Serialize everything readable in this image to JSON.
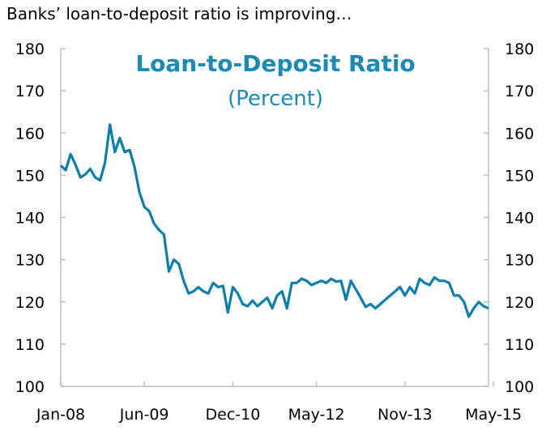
{
  "header": {
    "text": "Banks’ loan-to-deposit ratio is improving…"
  },
  "colors": {
    "line": "#0a7fb0",
    "title": "#1a8ab7",
    "axis": "#bfbfbf"
  },
  "chart_data": {
    "type": "line",
    "title": "Loan-to-Deposit Ratio",
    "subtitle": "(Percent)",
    "xlabel": "",
    "ylabel": "",
    "ylim": [
      100,
      180
    ],
    "y_ticks": [
      100,
      110,
      120,
      130,
      140,
      150,
      160,
      170,
      180
    ],
    "y_tick_labels": [
      "100",
      "110",
      "120",
      "130",
      "140",
      "150",
      "160",
      "170",
      "180"
    ],
    "x_tick_labels": [
      "Jan-08",
      "Jun-09",
      "Dec-10",
      "May-12",
      "Nov-13",
      "May-15"
    ],
    "x_tick_index": [
      0,
      17,
      35,
      52,
      70,
      88
    ],
    "grid": false,
    "legend": "none",
    "series": [
      {
        "values": [
          152.3,
          151.2,
          155.0,
          152.5,
          149.5,
          150.2,
          151.5,
          149.5,
          148.8,
          153.0,
          162.0,
          155.5,
          158.8,
          155.5,
          156.0,
          152.0,
          146.0,
          142.5,
          141.5,
          138.5,
          137.0,
          136.0,
          127.2,
          130.0,
          129.0,
          125.0,
          122.0,
          122.5,
          123.5,
          122.5,
          122.0,
          124.5,
          123.5,
          123.8,
          117.5,
          123.5,
          122.0,
          119.5,
          119.0,
          120.3,
          119.0,
          120.0,
          121.0,
          118.5,
          121.5,
          122.5,
          118.5,
          124.5,
          124.5,
          125.5,
          125.0,
          124.0,
          124.5,
          125.0,
          124.5,
          125.5,
          124.8,
          125.0,
          120.5,
          125.0,
          123.0,
          121.0,
          118.8,
          119.5,
          118.5,
          119.5,
          120.5,
          121.5,
          122.5,
          123.5,
          121.5,
          123.5,
          122.0,
          125.5,
          124.5,
          124.0,
          125.8,
          125.0,
          125.0,
          124.5,
          121.5,
          121.5,
          120.0,
          116.5,
          118.5,
          120.0,
          119.0,
          118.5
        ]
      }
    ]
  }
}
